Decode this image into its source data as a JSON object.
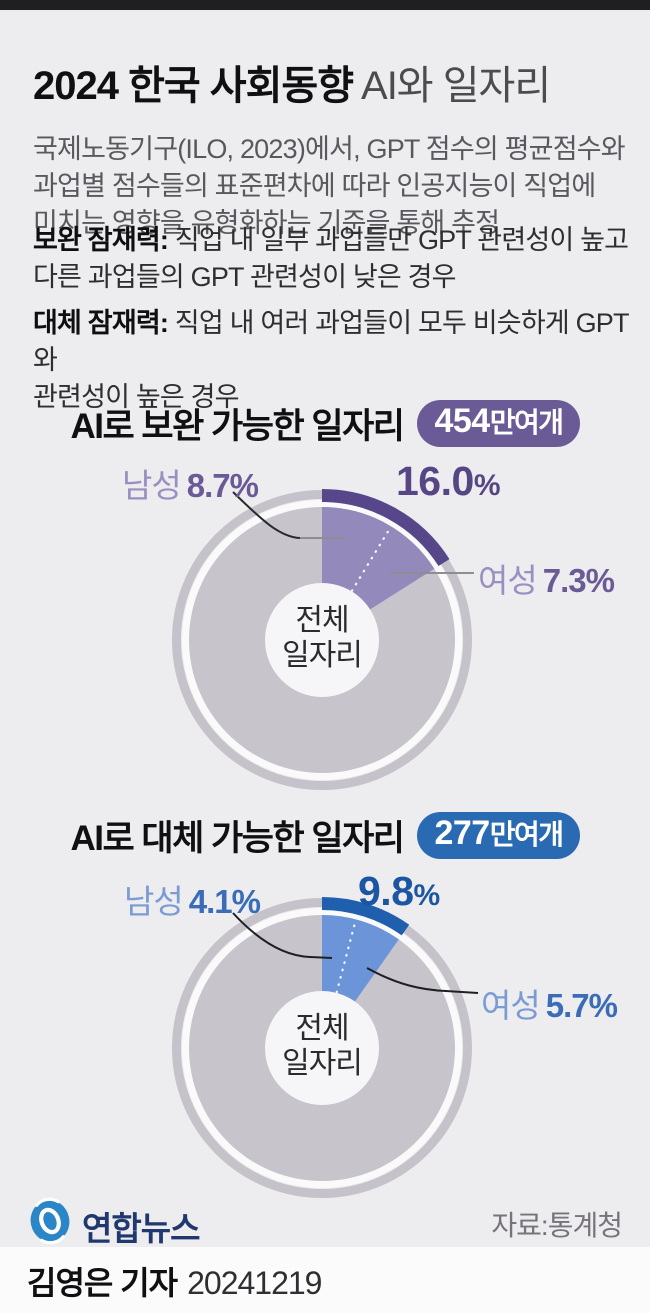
{
  "topbar_color": "#1F1F21",
  "header": {
    "title_bold": "2024 한국 사회동향",
    "title_light": "AI와 일자리",
    "intro": "국제노동기구(ILO, 2023)에서, GPT 점수의 평균점수와\n과업별 점수들의 표준편차에 따라 인공지능이 직업에\n미치는 영향을 유형화하는 기준을 통해 추정",
    "definitions": [
      {
        "term": "보완 잠재력:",
        "desc": " 직업 내 일부 과업들만 GPT 관련성이 높고\n다른 과업들의 GPT 관련성이 낮은 경우"
      },
      {
        "term": "대체 잠재력:",
        "desc": " 직업 내 여러 과업들이 모두 비슷하게 GPT와\n관련성이 높은 경우"
      }
    ]
  },
  "chart_data": [
    {
      "type": "pie",
      "variant": "donut",
      "title": "AI로 보완 가능한 일자리",
      "badge_num": "454",
      "badge_suffix": "만여개",
      "total_pct": 16.0,
      "total_label": "16.0",
      "total_unit": "%",
      "center_label": "전체\n일자리",
      "base_label": "전체 일자리",
      "segments": [
        {
          "label": "남성",
          "pct": 8.7,
          "pct_label": "8.7%"
        },
        {
          "label": "여성",
          "pct": 7.3,
          "pct_label": "7.3%"
        }
      ],
      "colors": {
        "badge": "#6A5B96",
        "wedge": "#9389BB",
        "arc": "#57478A",
        "label_light": "#9A8FC0",
        "label_dark": "#6A5B96",
        "total": "#564683",
        "ring": "#C5C3C9",
        "base": "#C7C5CB",
        "hole": "#F6F5F7"
      }
    },
    {
      "type": "pie",
      "variant": "donut",
      "title": "AI로 대체 가능한 일자리",
      "badge_num": "277",
      "badge_suffix": "만여개",
      "total_pct": 9.8,
      "total_label": "9.8",
      "total_unit": "%",
      "center_label": "전체\n일자리",
      "base_label": "전체 일자리",
      "segments": [
        {
          "label": "남성",
          "pct": 4.1,
          "pct_label": "4.1%"
        },
        {
          "label": "여성",
          "pct": 5.7,
          "pct_label": "5.7%"
        }
      ],
      "colors": {
        "badge": "#2A6AB3",
        "wedge": "#6C95D9",
        "arc": "#1F5FAE",
        "label_light": "#7A9BD3",
        "label_dark": "#3A6CB7",
        "total": "#1C55A2",
        "ring": "#C5C3C9",
        "base": "#C7C5CB",
        "hole": "#F6F5F7"
      }
    }
  ],
  "footer": {
    "brand": "연합뉴스",
    "logo_blue": "#2B86C8",
    "source": "자료:통계청"
  },
  "byline": {
    "reporter": "김영은 기자",
    "date": "20241219"
  }
}
